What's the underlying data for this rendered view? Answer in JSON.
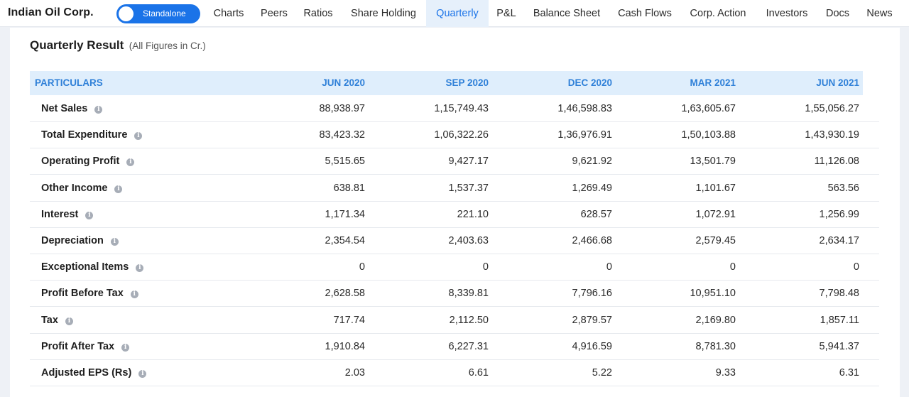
{
  "header": {
    "company": "Indian Oil Corp.",
    "toggle_label": "Standalone",
    "tabs": [
      {
        "label": "Charts"
      },
      {
        "label": "Peers"
      },
      {
        "label": "Ratios"
      },
      {
        "label": "Share Holding"
      },
      {
        "label": "Quarterly",
        "active": true
      },
      {
        "label": "P&L"
      },
      {
        "label": "Balance Sheet"
      },
      {
        "label": "Cash Flows"
      },
      {
        "label": "Corp. Action"
      },
      {
        "label": "Investors"
      },
      {
        "label": "Docs"
      },
      {
        "label": "News"
      }
    ]
  },
  "section": {
    "title": "Quarterly Result",
    "subtitle": "(All Figures in Cr.)"
  },
  "table": {
    "columns": [
      "PARTICULARS",
      "JUN 2020",
      "SEP 2020",
      "DEC 2020",
      "MAR 2021",
      "JUN 2021"
    ],
    "rows": [
      {
        "label": "Net Sales",
        "values": [
          "88,938.97",
          "1,15,749.43",
          "1,46,598.83",
          "1,63,605.67",
          "1,55,056.27"
        ]
      },
      {
        "label": "Total Expenditure",
        "values": [
          "83,423.32",
          "1,06,322.26",
          "1,36,976.91",
          "1,50,103.88",
          "1,43,930.19"
        ]
      },
      {
        "label": "Operating Profit",
        "values": [
          "5,515.65",
          "9,427.17",
          "9,621.92",
          "13,501.79",
          "11,126.08"
        ]
      },
      {
        "label": "Other Income",
        "values": [
          "638.81",
          "1,537.37",
          "1,269.49",
          "1,101.67",
          "563.56"
        ]
      },
      {
        "label": "Interest",
        "values": [
          "1,171.34",
          "221.10",
          "628.57",
          "1,072.91",
          "1,256.99"
        ]
      },
      {
        "label": "Depreciation",
        "values": [
          "2,354.54",
          "2,403.63",
          "2,466.68",
          "2,579.45",
          "2,634.17"
        ]
      },
      {
        "label": "Exceptional Items",
        "values": [
          "0",
          "0",
          "0",
          "0",
          "0"
        ]
      },
      {
        "label": "Profit Before Tax",
        "values": [
          "2,628.58",
          "8,339.81",
          "7,796.16",
          "10,951.10",
          "7,798.48"
        ]
      },
      {
        "label": "Tax",
        "values": [
          "717.74",
          "2,112.50",
          "2,879.57",
          "2,169.80",
          "1,857.11"
        ]
      },
      {
        "label": "Profit After Tax",
        "values": [
          "1,910.84",
          "6,227.31",
          "4,916.59",
          "8,781.30",
          "5,941.37"
        ]
      },
      {
        "label": "Adjusted EPS (Rs)",
        "values": [
          "2.03",
          "6.61",
          "5.22",
          "9.33",
          "6.31"
        ]
      }
    ],
    "info_icon_glyph": "i"
  },
  "colors": {
    "accent": "#1a73e8",
    "header_bg": "#dfeefc",
    "header_text": "#2f80d8"
  }
}
